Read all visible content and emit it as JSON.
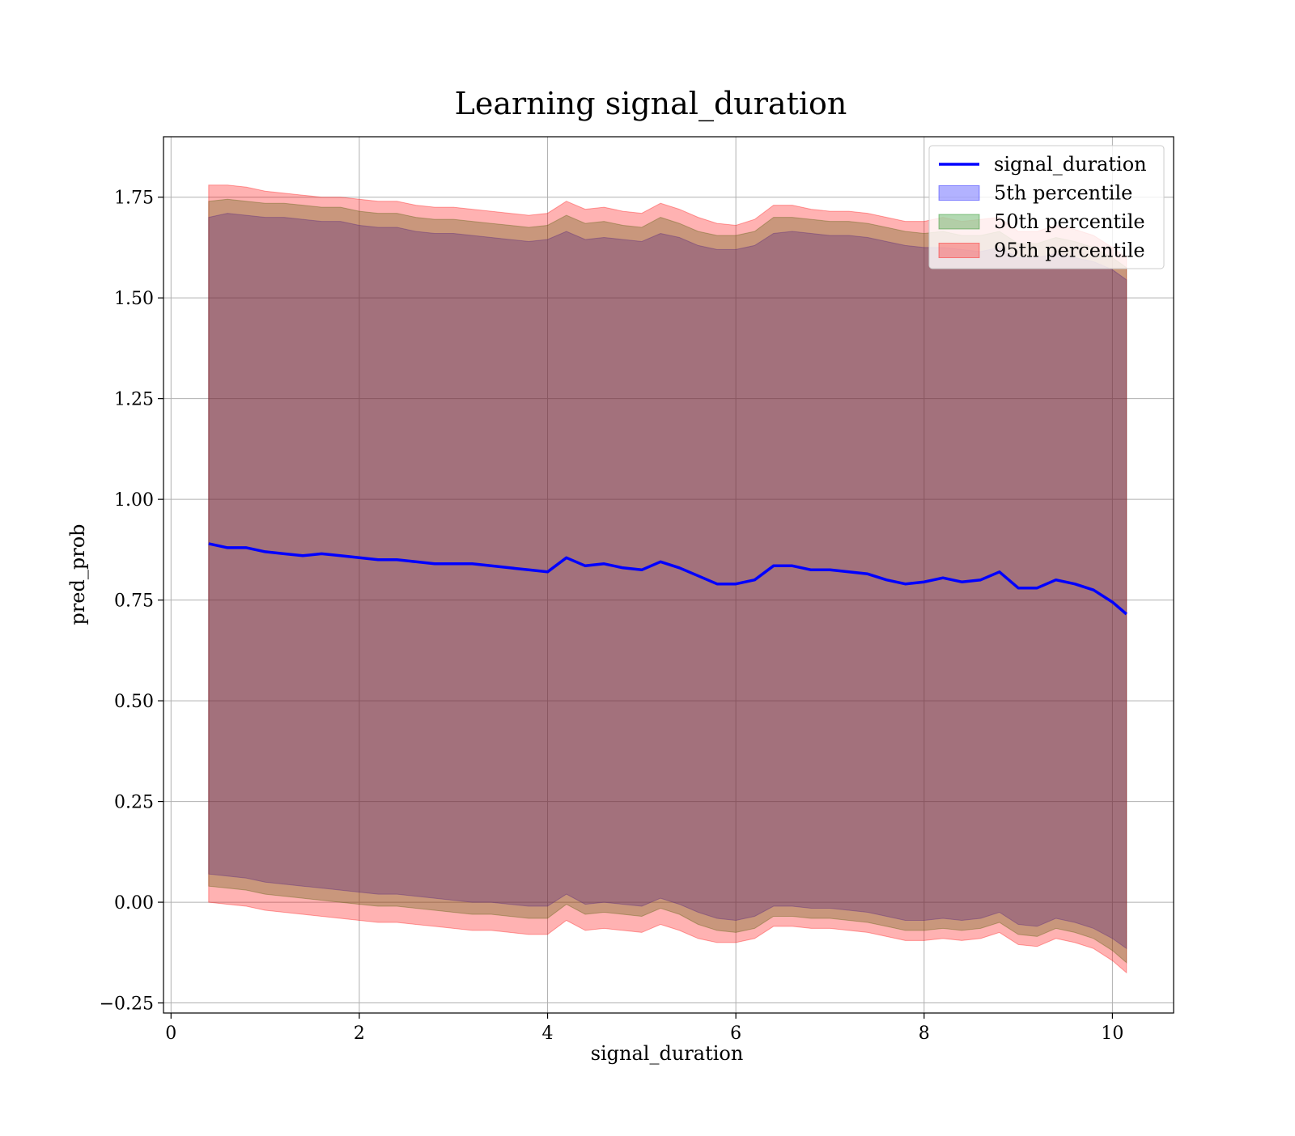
{
  "chart_data": {
    "type": "area",
    "title": "Learning signal_duration",
    "xlabel": "signal_duration",
    "ylabel": "pred_prob",
    "xlim": [
      -0.08,
      10.65
    ],
    "ylim": [
      -0.275,
      1.9
    ],
    "x_ticks": [
      0,
      2,
      4,
      6,
      8,
      10
    ],
    "x_tick_labels": [
      "0",
      "2",
      "4",
      "6",
      "8",
      "10"
    ],
    "y_ticks": [
      -0.25,
      0.0,
      0.25,
      0.5,
      0.75,
      1.0,
      1.25,
      1.5,
      1.75
    ],
    "y_tick_labels": [
      "−0.25",
      "0.00",
      "0.25",
      "0.50",
      "0.75",
      "1.00",
      "1.25",
      "1.50",
      "1.75"
    ],
    "grid": true,
    "legend_position": "top-right",
    "line_series": {
      "name": "signal_duration",
      "color": "#0000ff",
      "x": [
        0.4,
        0.6,
        0.8,
        1.0,
        1.2,
        1.4,
        1.6,
        1.8,
        2.0,
        2.2,
        2.4,
        2.6,
        2.8,
        3.0,
        3.2,
        3.4,
        3.6,
        3.8,
        4.0,
        4.2,
        4.4,
        4.6,
        4.8,
        5.0,
        5.2,
        5.4,
        5.6,
        5.8,
        6.0,
        6.2,
        6.4,
        6.6,
        6.8,
        7.0,
        7.2,
        7.4,
        7.6,
        7.8,
        8.0,
        8.2,
        8.4,
        8.6,
        8.8,
        9.0,
        9.2,
        9.4,
        9.6,
        9.8,
        10.0,
        10.15
      ],
      "y": [
        0.89,
        0.88,
        0.88,
        0.87,
        0.865,
        0.86,
        0.865,
        0.86,
        0.855,
        0.85,
        0.85,
        0.845,
        0.84,
        0.84,
        0.84,
        0.835,
        0.83,
        0.825,
        0.82,
        0.855,
        0.835,
        0.84,
        0.83,
        0.825,
        0.845,
        0.83,
        0.81,
        0.79,
        0.79,
        0.8,
        0.835,
        0.835,
        0.825,
        0.825,
        0.82,
        0.815,
        0.8,
        0.79,
        0.795,
        0.805,
        0.795,
        0.8,
        0.82,
        0.78,
        0.78,
        0.8,
        0.79,
        0.775,
        0.745,
        0.715
      ]
    },
    "bands": [
      {
        "name": "5th percentile",
        "color": "#0000ff",
        "opacity": 0.3,
        "x": [
          0.4,
          0.6,
          0.8,
          1.0,
          1.2,
          1.4,
          1.6,
          1.8,
          2.0,
          2.2,
          2.4,
          2.6,
          2.8,
          3.0,
          3.2,
          3.4,
          3.6,
          3.8,
          4.0,
          4.2,
          4.4,
          4.6,
          4.8,
          5.0,
          5.2,
          5.4,
          5.6,
          5.8,
          6.0,
          6.2,
          6.4,
          6.6,
          6.8,
          7.0,
          7.2,
          7.4,
          7.6,
          7.8,
          8.0,
          8.2,
          8.4,
          8.6,
          8.8,
          9.0,
          9.2,
          9.4,
          9.6,
          9.8,
          10.0,
          10.15
        ],
        "upper": [
          1.7,
          1.71,
          1.705,
          1.7,
          1.7,
          1.695,
          1.69,
          1.69,
          1.68,
          1.675,
          1.675,
          1.665,
          1.66,
          1.66,
          1.655,
          1.65,
          1.645,
          1.64,
          1.645,
          1.665,
          1.645,
          1.65,
          1.645,
          1.64,
          1.66,
          1.65,
          1.63,
          1.62,
          1.62,
          1.63,
          1.66,
          1.665,
          1.66,
          1.655,
          1.655,
          1.65,
          1.64,
          1.63,
          1.625,
          1.625,
          1.62,
          1.615,
          1.625,
          1.6,
          1.6,
          1.61,
          1.6,
          1.59,
          1.57,
          1.545
        ],
        "lower": [
          0.07,
          0.065,
          0.06,
          0.05,
          0.045,
          0.04,
          0.035,
          0.03,
          0.025,
          0.02,
          0.02,
          0.015,
          0.01,
          0.005,
          0.0,
          0.0,
          -0.005,
          -0.01,
          -0.01,
          0.02,
          -0.005,
          0.0,
          -0.005,
          -0.01,
          0.01,
          -0.005,
          -0.025,
          -0.04,
          -0.045,
          -0.035,
          -0.01,
          -0.01,
          -0.015,
          -0.015,
          -0.02,
          -0.025,
          -0.035,
          -0.045,
          -0.045,
          -0.04,
          -0.045,
          -0.04,
          -0.025,
          -0.055,
          -0.06,
          -0.04,
          -0.05,
          -0.065,
          -0.09,
          -0.115
        ]
      },
      {
        "name": "50th percentile",
        "color": "#008000",
        "opacity": 0.3,
        "x": [
          0.4,
          0.6,
          0.8,
          1.0,
          1.2,
          1.4,
          1.6,
          1.8,
          2.0,
          2.2,
          2.4,
          2.6,
          2.8,
          3.0,
          3.2,
          3.4,
          3.6,
          3.8,
          4.0,
          4.2,
          4.4,
          4.6,
          4.8,
          5.0,
          5.2,
          5.4,
          5.6,
          5.8,
          6.0,
          6.2,
          6.4,
          6.6,
          6.8,
          7.0,
          7.2,
          7.4,
          7.6,
          7.8,
          8.0,
          8.2,
          8.4,
          8.6,
          8.8,
          9.0,
          9.2,
          9.4,
          9.6,
          9.8,
          10.0,
          10.15
        ],
        "upper": [
          1.74,
          1.745,
          1.74,
          1.735,
          1.735,
          1.73,
          1.725,
          1.725,
          1.715,
          1.71,
          1.71,
          1.7,
          1.695,
          1.695,
          1.69,
          1.685,
          1.68,
          1.675,
          1.68,
          1.705,
          1.685,
          1.69,
          1.68,
          1.675,
          1.7,
          1.685,
          1.665,
          1.655,
          1.655,
          1.665,
          1.7,
          1.7,
          1.695,
          1.69,
          1.69,
          1.685,
          1.675,
          1.665,
          1.66,
          1.665,
          1.655,
          1.655,
          1.665,
          1.635,
          1.635,
          1.65,
          1.64,
          1.625,
          1.6,
          1.575
        ],
        "lower": [
          0.04,
          0.035,
          0.03,
          0.02,
          0.015,
          0.01,
          0.005,
          0.0,
          -0.005,
          -0.01,
          -0.01,
          -0.015,
          -0.02,
          -0.025,
          -0.03,
          -0.03,
          -0.035,
          -0.04,
          -0.04,
          -0.005,
          -0.03,
          -0.025,
          -0.03,
          -0.035,
          -0.015,
          -0.03,
          -0.055,
          -0.07,
          -0.075,
          -0.065,
          -0.035,
          -0.035,
          -0.04,
          -0.04,
          -0.045,
          -0.05,
          -0.06,
          -0.07,
          -0.07,
          -0.065,
          -0.07,
          -0.065,
          -0.05,
          -0.08,
          -0.085,
          -0.065,
          -0.075,
          -0.09,
          -0.12,
          -0.15
        ]
      },
      {
        "name": "95th percentile",
        "color": "#ff0000",
        "opacity": 0.3,
        "x": [
          0.4,
          0.6,
          0.8,
          1.0,
          1.2,
          1.4,
          1.6,
          1.8,
          2.0,
          2.2,
          2.4,
          2.6,
          2.8,
          3.0,
          3.2,
          3.4,
          3.6,
          3.8,
          4.0,
          4.2,
          4.4,
          4.6,
          4.8,
          5.0,
          5.2,
          5.4,
          5.6,
          5.8,
          6.0,
          6.2,
          6.4,
          6.6,
          6.8,
          7.0,
          7.2,
          7.4,
          7.6,
          7.8,
          8.0,
          8.2,
          8.4,
          8.6,
          8.8,
          9.0,
          9.2,
          9.4,
          9.6,
          9.8,
          10.0,
          10.15
        ],
        "upper": [
          1.78,
          1.78,
          1.775,
          1.765,
          1.76,
          1.755,
          1.75,
          1.75,
          1.745,
          1.74,
          1.74,
          1.73,
          1.725,
          1.725,
          1.72,
          1.715,
          1.71,
          1.705,
          1.71,
          1.74,
          1.72,
          1.725,
          1.715,
          1.71,
          1.735,
          1.72,
          1.7,
          1.685,
          1.68,
          1.695,
          1.73,
          1.73,
          1.72,
          1.715,
          1.715,
          1.71,
          1.7,
          1.69,
          1.69,
          1.7,
          1.69,
          1.695,
          1.7,
          1.665,
          1.665,
          1.68,
          1.67,
          1.655,
          1.625,
          1.6
        ],
        "lower": [
          0.0,
          -0.005,
          -0.01,
          -0.02,
          -0.025,
          -0.03,
          -0.035,
          -0.04,
          -0.045,
          -0.05,
          -0.05,
          -0.055,
          -0.06,
          -0.065,
          -0.07,
          -0.07,
          -0.075,
          -0.08,
          -0.08,
          -0.045,
          -0.07,
          -0.065,
          -0.07,
          -0.075,
          -0.055,
          -0.07,
          -0.09,
          -0.1,
          -0.1,
          -0.09,
          -0.06,
          -0.06,
          -0.065,
          -0.065,
          -0.07,
          -0.075,
          -0.085,
          -0.095,
          -0.095,
          -0.09,
          -0.095,
          -0.09,
          -0.075,
          -0.105,
          -0.11,
          -0.09,
          -0.1,
          -0.115,
          -0.145,
          -0.175
        ]
      }
    ]
  },
  "legend": {
    "items": [
      {
        "label": "signal_duration",
        "kind": "line",
        "color": "#0000ff"
      },
      {
        "label": "5th percentile",
        "kind": "patch",
        "color": "#0000ff"
      },
      {
        "label": "50th percentile",
        "kind": "patch",
        "color": "#008000"
      },
      {
        "label": "95th percentile",
        "kind": "patch",
        "color": "#ff0000"
      }
    ]
  }
}
